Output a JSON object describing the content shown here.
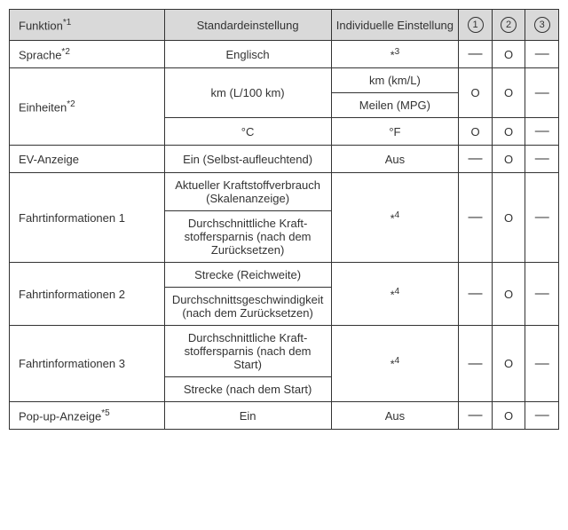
{
  "headers": {
    "function": "Funktion",
    "function_sup": "*1",
    "standard": "Standardeinstellung",
    "individual": "Individuelle Ein­stellung",
    "col1": "1",
    "col2": "2",
    "col3": "3"
  },
  "rows": {
    "sprache": {
      "func": "Sprache",
      "func_sup": "*2",
      "std": "Englisch",
      "ind": "*",
      "ind_sup": "3",
      "c1": "—",
      "c2": "O",
      "c3": "—"
    },
    "einheiten": {
      "func": "Einheiten",
      "func_sup": "*2",
      "std1": "km (L/100 km)",
      "ind1a": "km (km/L)",
      "ind1b": "Meilen (MPG)",
      "std2": "°C",
      "ind2": "°F",
      "r1c1": "O",
      "r1c2": "O",
      "r1c3": "—",
      "r2c1": "O",
      "r2c2": "O",
      "r2c3": "—"
    },
    "ev": {
      "func": "EV-Anzeige",
      "std": "Ein (Selbst-aufleuchtend)",
      "ind": "Aus",
      "c1": "—",
      "c2": "O",
      "c3": "—"
    },
    "fahrt1": {
      "func": "Fahrtinformationen 1",
      "std1": "Aktueller Kraftstoffver­brauch (Skalenanzeige)",
      "std2": "Durchschnittliche Kraft­stoffersparnis (nach dem Zurücksetzen)",
      "ind": "*",
      "ind_sup": "4",
      "c1": "—",
      "c2": "O",
      "c3": "—"
    },
    "fahrt2": {
      "func": "Fahrtinformationen 2",
      "std1": "Strecke (Reichweite)",
      "std2": "Durchschnittsgeschwin­digkeit (nach dem Zurück­setzen)",
      "ind": "*",
      "ind_sup": "4",
      "c1": "—",
      "c2": "O",
      "c3": "—"
    },
    "fahrt3": {
      "func": "Fahrtinformationen 3",
      "std1": "Durchschnittliche Kraft­stoffersparnis (nach dem Start)",
      "std2": "Strecke (nach dem Start)",
      "ind": "*",
      "ind_sup": "4",
      "c1": "—",
      "c2": "O",
      "c3": "—"
    },
    "popup": {
      "func": "Pop-up-Anzeige",
      "func_sup": "*5",
      "std": "Ein",
      "ind": "Aus",
      "c1": "—",
      "c2": "O",
      "c3": "—"
    }
  }
}
